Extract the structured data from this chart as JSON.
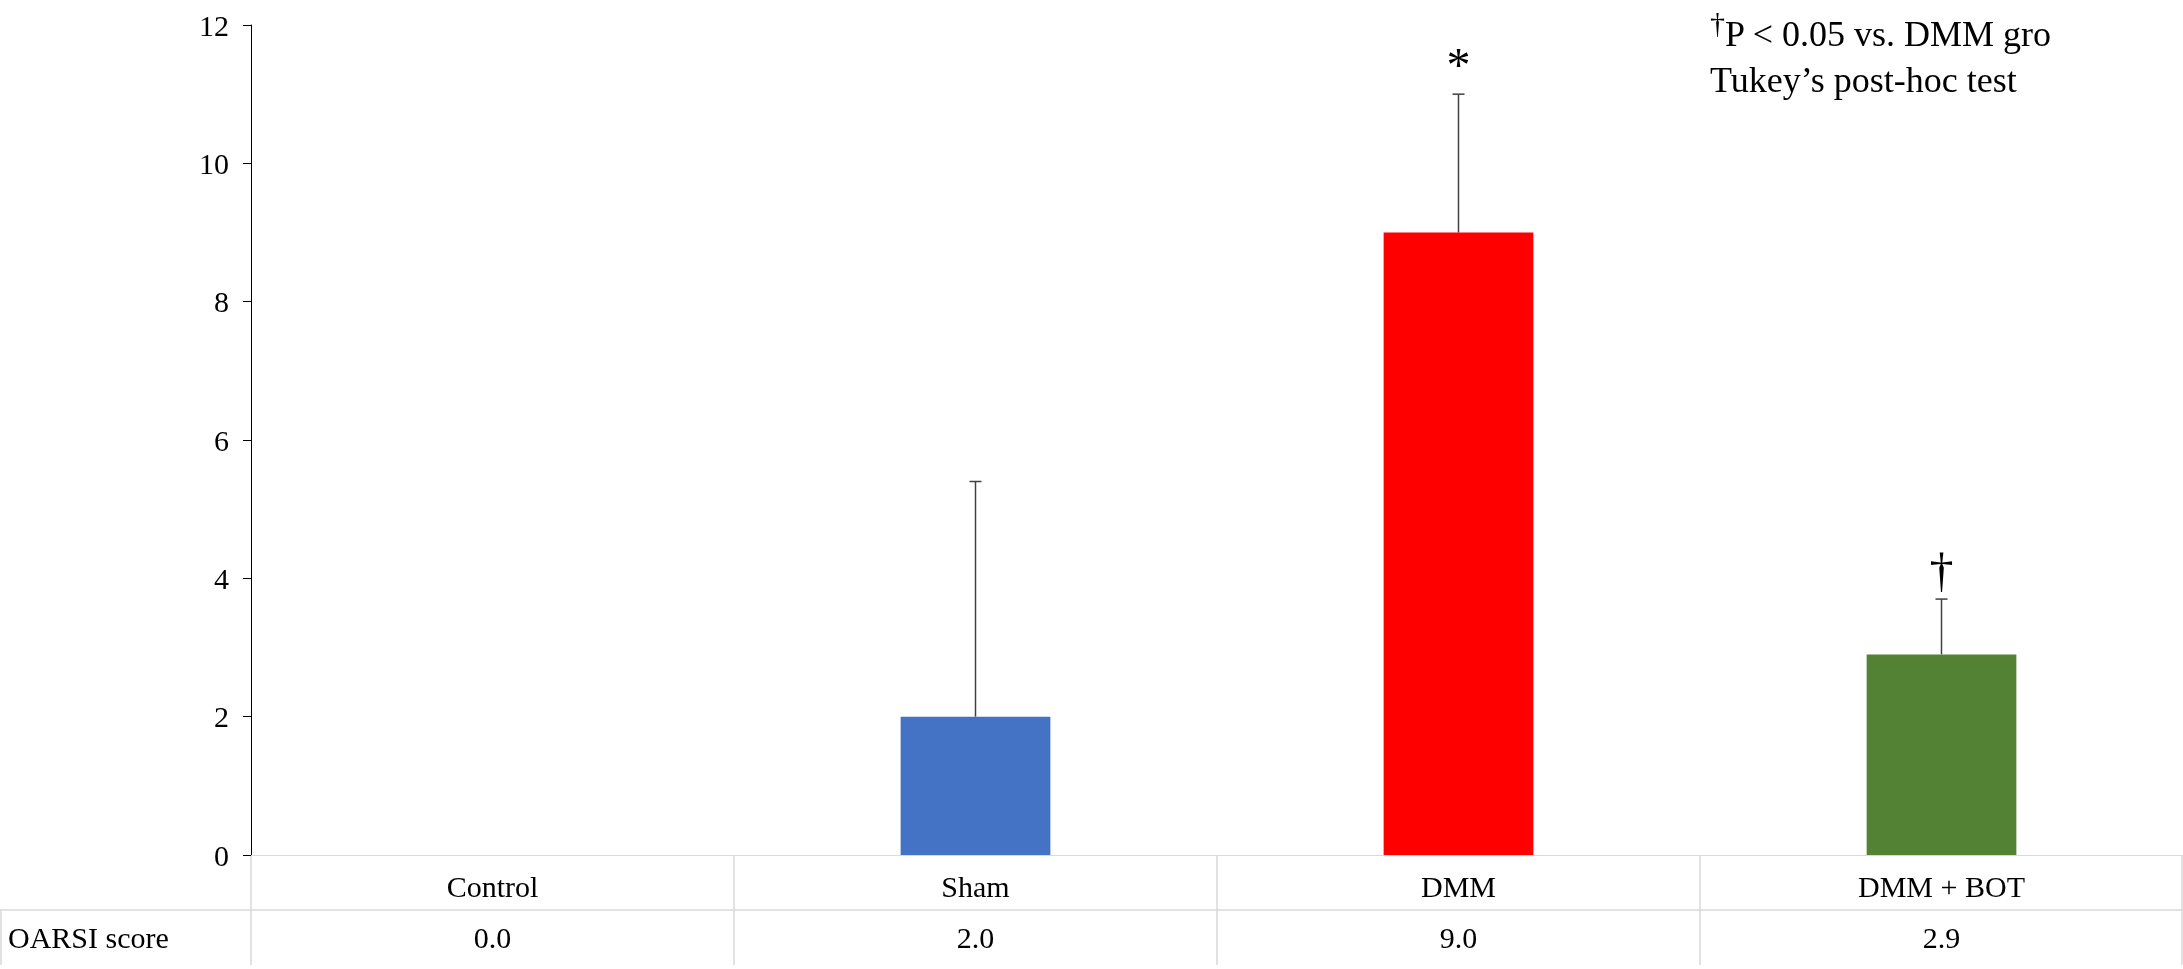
{
  "chart_data": {
    "type": "bar",
    "categories": [
      "Control",
      "Sham",
      "DMM",
      "DMM + BOT"
    ],
    "series": [
      {
        "name": "OARSI score",
        "colors": [
          "#4472c4",
          "#4472c4",
          "#ff0000",
          "#548235"
        ],
        "values": [
          0.0,
          2.0,
          9.0,
          2.9
        ],
        "value_labels": [
          "0.0",
          "2.0",
          "9.0",
          "2.9"
        ],
        "errors": [
          null,
          [
            2.0,
            5.4
          ],
          [
            9.0,
            11.0
          ],
          [
            2.9,
            3.7
          ]
        ]
      }
    ],
    "ylim": [
      0,
      12
    ],
    "yticks": [
      0,
      2,
      4,
      6,
      8,
      10,
      12
    ],
    "grid": false,
    "legend": false,
    "annotations": [
      {
        "text": "*",
        "x": "DMM",
        "y": 11.0
      },
      {
        "text": "†",
        "x": "DMM + BOT",
        "y": 3.7
      },
      "$^{†}$P < 0.05 vs. DMM gro",
      "Tukey’s post-hoc test"
    ]
  }
}
